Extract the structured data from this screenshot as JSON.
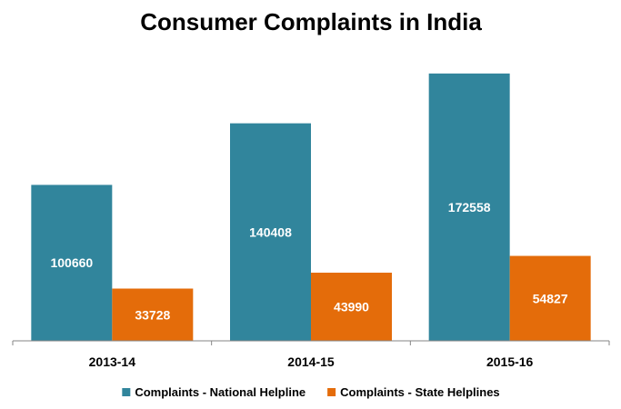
{
  "chart_data": {
    "type": "bar",
    "title": "Consumer Complaints in India",
    "categories": [
      "2013-14",
      "2014-15",
      "2015-16"
    ],
    "series": [
      {
        "name": "Complaints - National Helpline",
        "values": [
          100660,
          140408,
          172558
        ],
        "color": "#31859c"
      },
      {
        "name": "Complaints - State Helplines",
        "values": [
          33728,
          43990,
          54827
        ],
        "color": "#e46c0a"
      }
    ],
    "xlabel": "",
    "ylabel": "",
    "ylim": [
      0,
      176000
    ],
    "grid": false,
    "data_labels": true,
    "legend_position": "bottom"
  }
}
